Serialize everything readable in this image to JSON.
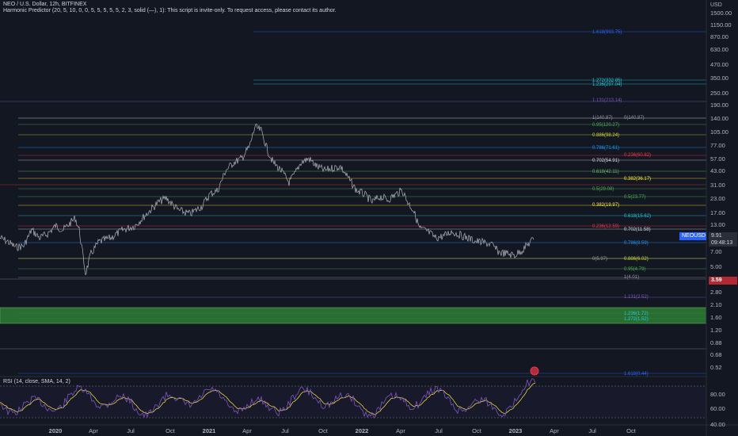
{
  "header": {
    "title": "NEO / U.S. Dollar, 12h, BITFINEX",
    "indicator": "Harmonic Predictor (20, 5, 10, 0, 0, 5, 5, 5, 5, 5, 2, 3, solid (—), 1): This script is invite-only. To request access, please contact its author."
  },
  "price_axis": {
    "currency": "USD",
    "ticks": [
      "1500.00",
      "1150.00",
      "870.00",
      "630.00",
      "470.00",
      "350.00",
      "250.00",
      "190.00",
      "140.00",
      "105.00",
      "77.00",
      "57.00",
      "43.00",
      "31.00",
      "23.00",
      "17.00",
      "13.00",
      "10.00",
      "7.00",
      "5.00",
      "3.80",
      "2.80",
      "2.10",
      "1.60",
      "1.20",
      "0.88",
      "0.68",
      "0.52"
    ]
  },
  "price_tags": {
    "symbol": "NEOUSD",
    "last_price": "9.91",
    "countdown": "09:48:13",
    "level_price": "3.59"
  },
  "fib_levels": [
    {
      "label": "1.618(993.75)",
      "color": "#2962ff"
    },
    {
      "label": "1.272(332.85)",
      "color": "#26c6da"
    },
    {
      "label": "1.236(297.04)",
      "color": "#26c6da"
    },
    {
      "label": "1.131(213.14)",
      "color": "#7e57c2"
    },
    {
      "label": "1(140.87)",
      "color": "#9598a1"
    },
    {
      "label": "0(140.87)",
      "color": "#9598a1"
    },
    {
      "label": "0.95(120.27)",
      "color": "#4caf50"
    },
    {
      "label": "0.886(98.24)",
      "color": "#cddc39"
    },
    {
      "label": "0.786(71.61)",
      "color": "#2196f3"
    },
    {
      "label": "0.236(60.82)",
      "color": "#f23645"
    },
    {
      "label": "0.702(54.91)",
      "color": "#d1d4dc"
    },
    {
      "label": "0.618(42.11)",
      "color": "#66bb6a"
    },
    {
      "label": "0.382(36.17)",
      "color": "#ffeb3b"
    },
    {
      "label": "0.5(29.08)",
      "color": "#4caf50"
    },
    {
      "label": "0.5(23.77)",
      "color": "#4caf50"
    },
    {
      "label": "0.382(19.97)",
      "color": "#ffeb3b"
    },
    {
      "label": "0.618(15.62)",
      "color": "#26c6da"
    },
    {
      "label": "0.236(12.59)",
      "color": "#f23645"
    },
    {
      "label": "0.702(11.58)",
      "color": "#d1d4dc"
    },
    {
      "label": "0.786(8.59)",
      "color": "#2196f3"
    },
    {
      "label": "0(5.97)",
      "color": "#9598a1"
    },
    {
      "label": "0.886(6.02)",
      "color": "#cddc39"
    },
    {
      "label": "0.95(4.79)",
      "color": "#4caf50"
    },
    {
      "label": "1(4.01)",
      "color": "#9598a1"
    },
    {
      "label": "1.131(2.52)",
      "color": "#7e57c2"
    },
    {
      "label": "1.236(1.72)",
      "color": "#26c6da"
    },
    {
      "label": "1.272(1.52)",
      "color": "#26c6da"
    },
    {
      "label": "1.618(0.44)",
      "color": "#2962ff"
    }
  ],
  "rsi": {
    "label": "RSI (14, close, SMA, 14, 2)",
    "ticks": [
      "80.00",
      "60.00",
      "40.00"
    ]
  },
  "time_axis": [
    "2020",
    "Apr",
    "Jul",
    "Oct",
    "2021",
    "Apr",
    "Jul",
    "Oct",
    "2022",
    "Apr",
    "Jul",
    "Oct",
    "2023",
    "Apr",
    "Jul",
    "Oct"
  ],
  "colors": {
    "background": "#131722",
    "candles": "#b2b5be",
    "rsi_line": "#7e57c2",
    "rsi_ma": "#ffeb3b",
    "zone": "#4caf50"
  }
}
